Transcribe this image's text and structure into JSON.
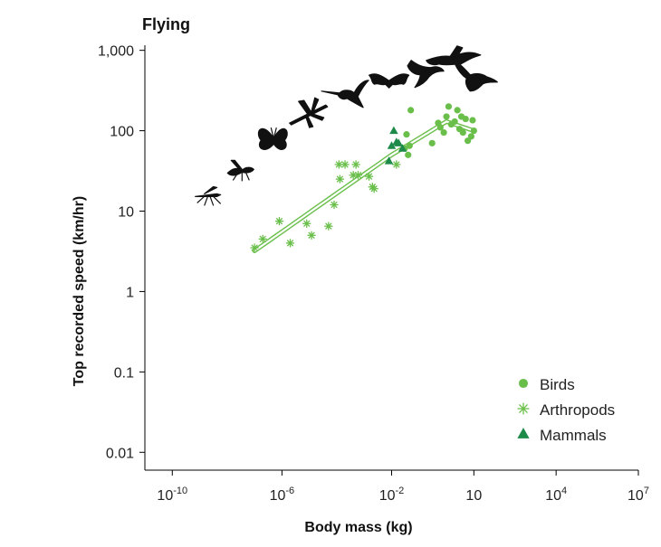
{
  "chart_data": {
    "type": "scatter",
    "title": "Flying",
    "xlabel": "Body mass (kg)",
    "ylabel": "Top recorded speed (km/hr)",
    "x_scale": "log",
    "y_scale": "log",
    "xlim": [
      1e-11,
      10000000.0
    ],
    "ylim": [
      0.006,
      1500
    ],
    "x_ticks": [
      {
        "value": 1e-10,
        "base": "10",
        "exp": "-10"
      },
      {
        "value": 1e-06,
        "base": "10",
        "exp": "-6"
      },
      {
        "value": 0.01,
        "base": "10",
        "exp": "-2"
      },
      {
        "value": 10,
        "base": "10",
        "exp": ""
      },
      {
        "value": 10000,
        "base": "10",
        "exp": "4"
      },
      {
        "value": 10000000.0,
        "base": "10",
        "exp": "7"
      }
    ],
    "y_ticks": [
      {
        "value": 0.01,
        "label": "0.01"
      },
      {
        "value": 0.1,
        "label": "0.1"
      },
      {
        "value": 1,
        "label": "1"
      },
      {
        "value": 10,
        "label": "10"
      },
      {
        "value": 100,
        "label": "100"
      },
      {
        "value": 1000,
        "label": "1,000"
      }
    ],
    "grid": false,
    "legend_position": "bottom-right",
    "series": [
      {
        "name": "Birds",
        "marker": "circle",
        "color": "#6abf4b",
        "points": [
          [
            0.03,
            60
          ],
          [
            0.035,
            90
          ],
          [
            0.04,
            50
          ],
          [
            0.045,
            65
          ],
          [
            0.05,
            180
          ],
          [
            0.3,
            70
          ],
          [
            0.5,
            125
          ],
          [
            0.6,
            110
          ],
          [
            0.8,
            95
          ],
          [
            1.0,
            150
          ],
          [
            1.2,
            200
          ],
          [
            1.5,
            120
          ],
          [
            2,
            130
          ],
          [
            2.5,
            180
          ],
          [
            3,
            105
          ],
          [
            3.5,
            150
          ],
          [
            4,
            95
          ],
          [
            5,
            140
          ],
          [
            6,
            75
          ],
          [
            8,
            85
          ],
          [
            9,
            135
          ],
          [
            10,
            100
          ]
        ]
      },
      {
        "name": "Arthropods",
        "marker": "asterisk",
        "color": "#6abf4b",
        "points": [
          [
            1e-07,
            3.5
          ],
          [
            2e-07,
            4.5
          ],
          [
            8e-07,
            7.5
          ],
          [
            2e-06,
            4
          ],
          [
            8e-06,
            7
          ],
          [
            1.2e-05,
            5
          ],
          [
            5e-05,
            6.5
          ],
          [
            8e-05,
            12
          ],
          [
            0.00012,
            38
          ],
          [
            0.00013,
            25
          ],
          [
            0.0002,
            38
          ],
          [
            0.0004,
            28
          ],
          [
            0.0005,
            38
          ],
          [
            0.0006,
            28
          ],
          [
            0.0015,
            27
          ],
          [
            0.002,
            20
          ],
          [
            0.0023,
            19
          ],
          [
            0.015,
            38
          ]
        ]
      },
      {
        "name": "Mammals",
        "marker": "triangle",
        "color": "#1e8a4a",
        "points": [
          [
            0.008,
            42
          ],
          [
            0.01,
            65
          ],
          [
            0.012,
            100
          ],
          [
            0.015,
            72
          ],
          [
            0.018,
            70
          ],
          [
            0.025,
            60
          ]
        ]
      }
    ],
    "trend_line": {
      "style": "double",
      "color": "#6abf4b",
      "points": [
        [
          1e-07,
          3.2
        ],
        [
          0.01,
          50
        ],
        [
          1,
          130
        ],
        [
          10,
          100
        ]
      ]
    }
  },
  "colors": {
    "bird": "#6abf4b",
    "arthropod": "#6abf4b",
    "mammal": "#1e8a4a",
    "silhouette": "#111111"
  },
  "silhouettes": [
    {
      "name": "mosquito-silhouette",
      "x": 2e-09,
      "y": 16
    },
    {
      "name": "wasp-silhouette",
      "x": 3e-08,
      "y": 33
    },
    {
      "name": "butterfly-silhouette",
      "x": 5e-07,
      "y": 80
    },
    {
      "name": "dragonfly-silhouette",
      "x": 1e-05,
      "y": 170
    },
    {
      "name": "hummingbird-silhouette",
      "x": 0.0002,
      "y": 280
    },
    {
      "name": "bat-silhouette",
      "x": 0.008,
      "y": 420
    },
    {
      "name": "swift-silhouette",
      "x": 0.15,
      "y": 580
    },
    {
      "name": "goose-silhouette",
      "x": 1.8,
      "y": 750
    },
    {
      "name": "falcon-silhouette",
      "x": 10,
      "y": 470
    }
  ]
}
